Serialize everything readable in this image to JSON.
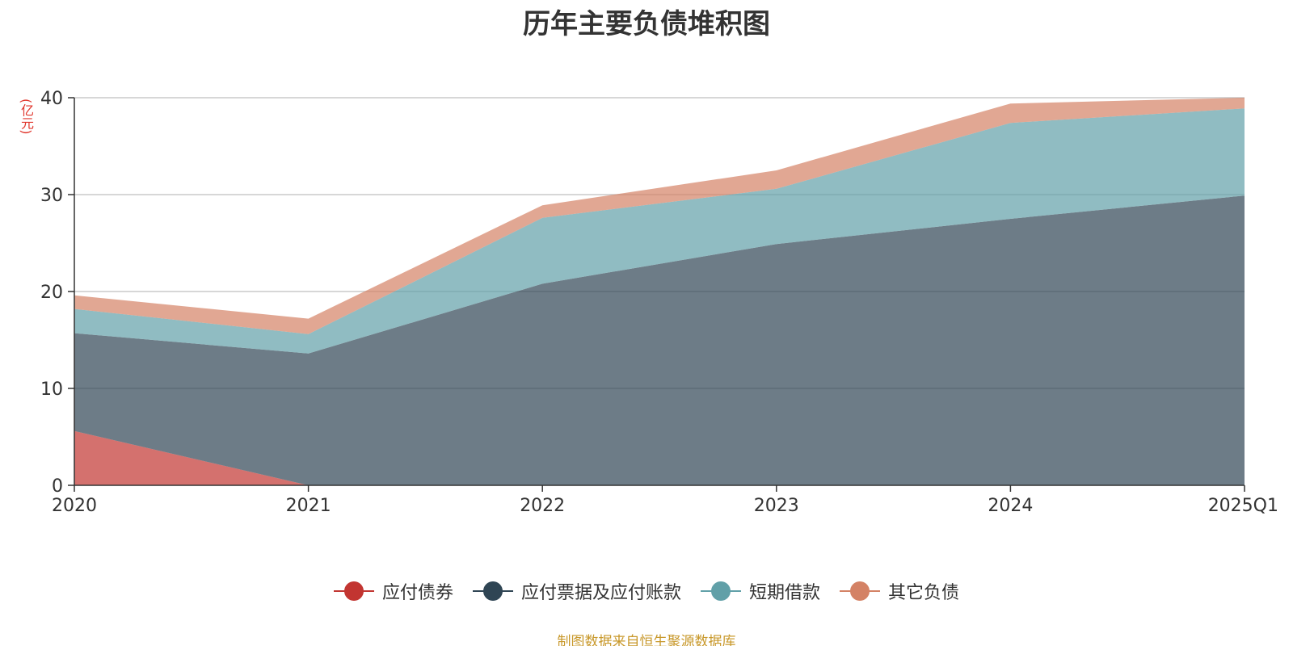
{
  "chart_data": {
    "type": "area",
    "stacked": true,
    "title": "历年主要负债堆积图",
    "unit": "(亿元)",
    "categories": [
      "2020",
      "2021",
      "2022",
      "2023",
      "2024",
      "2025Q1"
    ],
    "ylim": [
      0,
      40
    ],
    "yticks": [
      0,
      10,
      20,
      30,
      40
    ],
    "grid": true,
    "legend_position": "bottom",
    "series": [
      {
        "name": "应付债券",
        "color": "#c23531",
        "values": [
          5.6,
          0,
          0,
          0,
          0,
          0
        ]
      },
      {
        "name": "应付票据及应付账款",
        "color": "#2f4554",
        "values": [
          10.1,
          13.6,
          20.8,
          24.9,
          27.5,
          29.9
        ]
      },
      {
        "name": "短期借款",
        "color": "#61a0a8",
        "values": [
          2.5,
          2.0,
          6.8,
          5.7,
          9.9,
          9.0
        ]
      },
      {
        "name": "其它负债",
        "color": "#d48265",
        "values": [
          1.4,
          1.6,
          1.3,
          1.9,
          2.0,
          1.1
        ]
      }
    ],
    "source": "制图数据来自恒生聚源数据库"
  }
}
